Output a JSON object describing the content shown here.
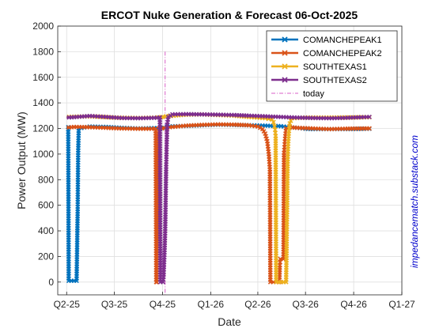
{
  "chart_data": {
    "type": "line",
    "title": "ERCOT Nuke Generation & Forecast 06-Oct-2025",
    "xlabel": "Date",
    "ylabel": "Power Output (MW)",
    "ylim": [
      -100,
      2000
    ],
    "yticks": [
      0,
      200,
      400,
      600,
      800,
      1000,
      1200,
      1400,
      1600,
      1800,
      2000
    ],
    "xlim": [
      "2025-03-15",
      "2027-01-01"
    ],
    "xticks": [
      {
        "label": "Q2-25",
        "date": "2025-04-01"
      },
      {
        "label": "Q3-25",
        "date": "2025-07-01"
      },
      {
        "label": "Q4-25",
        "date": "2025-10-01"
      },
      {
        "label": "Q1-26",
        "date": "2026-01-01"
      },
      {
        "label": "Q2-26",
        "date": "2026-04-01"
      },
      {
        "label": "Q3-26",
        "date": "2026-07-01"
      },
      {
        "label": "Q4-26",
        "date": "2026-10-01"
      },
      {
        "label": "Q1-27",
        "date": "2027-01-01"
      }
    ],
    "grid": true,
    "legend_position": "top-right",
    "today": {
      "name": "today",
      "date": "2025-10-06",
      "color": "#d95fc8"
    },
    "series": [
      {
        "name": "COMANCHEPEAK1",
        "color": "#0072bd",
        "points": [
          [
            "2025-04-01",
            1210
          ],
          [
            "2025-04-04",
            1210
          ],
          [
            "2025-04-05",
            10
          ],
          [
            "2025-04-20",
            10
          ],
          [
            "2025-04-22",
            550
          ],
          [
            "2025-04-23",
            1010
          ],
          [
            "2025-04-24",
            1200
          ],
          [
            "2025-05-15",
            1215
          ],
          [
            "2025-06-15",
            1212
          ],
          [
            "2025-07-15",
            1205
          ],
          [
            "2025-08-15",
            1200
          ],
          [
            "2025-09-15",
            1203
          ],
          [
            "2025-10-03",
            1205
          ],
          [
            "2025-10-05",
            1205
          ],
          [
            "2025-10-10",
            1215
          ],
          [
            "2025-11-15",
            1220
          ],
          [
            "2025-12-15",
            1225
          ],
          [
            "2026-01-15",
            1230
          ],
          [
            "2026-02-15",
            1228
          ],
          [
            "2026-03-15",
            1225
          ],
          [
            "2026-04-15",
            1222
          ],
          [
            "2026-05-15",
            1218
          ],
          [
            "2026-06-01",
            1210
          ],
          [
            "2026-06-15",
            1205
          ],
          [
            "2026-07-01",
            1198
          ],
          [
            "2026-07-15",
            1195
          ],
          [
            "2026-08-15",
            1195
          ],
          [
            "2026-09-15",
            1195
          ],
          [
            "2026-10-15",
            1197
          ],
          [
            "2026-10-31",
            1198
          ]
        ]
      },
      {
        "name": "COMANCHEPEAK2",
        "color": "#d95319",
        "points": [
          [
            "2025-04-01",
            1205
          ],
          [
            "2025-04-15",
            1212
          ],
          [
            "2025-05-15",
            1210
          ],
          [
            "2025-06-15",
            1205
          ],
          [
            "2025-07-15",
            1200
          ],
          [
            "2025-08-15",
            1198
          ],
          [
            "2025-09-10",
            1198
          ],
          [
            "2025-09-18",
            1198
          ],
          [
            "2025-09-19",
            0
          ],
          [
            "2025-09-20",
            0
          ],
          [
            "2025-09-21",
            640
          ],
          [
            "2025-09-22",
            890
          ],
          [
            "2025-09-23",
            1160
          ],
          [
            "2025-09-25",
            1198
          ],
          [
            "2025-10-15",
            1210
          ],
          [
            "2025-11-15",
            1222
          ],
          [
            "2025-12-15",
            1228
          ],
          [
            "2026-01-15",
            1232
          ],
          [
            "2026-02-15",
            1230
          ],
          [
            "2026-03-15",
            1225
          ],
          [
            "2026-04-01",
            1215
          ],
          [
            "2026-04-10",
            1195
          ],
          [
            "2026-04-15",
            1160
          ],
          [
            "2026-04-19",
            1100
          ],
          [
            "2026-04-22",
            1000
          ],
          [
            "2026-04-24",
            880
          ],
          [
            "2026-04-25",
            0
          ],
          [
            "2026-05-12",
            0
          ],
          [
            "2026-05-13",
            130
          ],
          [
            "2026-05-14",
            180
          ],
          [
            "2026-05-20",
            180
          ],
          [
            "2026-05-21",
            1010
          ],
          [
            "2026-05-23",
            1120
          ],
          [
            "2026-05-25",
            1200
          ],
          [
            "2026-06-01",
            1210
          ],
          [
            "2026-06-15",
            1205
          ],
          [
            "2026-07-15",
            1200
          ],
          [
            "2026-08-15",
            1195
          ],
          [
            "2026-09-15",
            1198
          ],
          [
            "2026-10-31",
            1200
          ]
        ]
      },
      {
        "name": "SOUTHTEXAS1",
        "color": "#edb120",
        "points": [
          [
            "2025-04-01",
            1290
          ],
          [
            "2025-05-15",
            1295
          ],
          [
            "2025-07-01",
            1285
          ],
          [
            "2025-08-15",
            1282
          ],
          [
            "2025-09-15",
            1285
          ],
          [
            "2025-09-28",
            1288
          ],
          [
            "2025-10-01",
            1290
          ],
          [
            "2025-10-08",
            1295
          ],
          [
            "2025-11-15",
            1308
          ],
          [
            "2025-12-15",
            1310
          ],
          [
            "2026-01-15",
            1305
          ],
          [
            "2026-02-15",
            1300
          ],
          [
            "2026-03-15",
            1290
          ],
          [
            "2026-04-15",
            1280
          ],
          [
            "2026-04-28",
            1270
          ],
          [
            "2026-05-01",
            1250
          ],
          [
            "2026-05-03",
            1215
          ],
          [
            "2026-05-04",
            1190
          ],
          [
            "2026-05-05",
            1140
          ],
          [
            "2026-05-06",
            0
          ],
          [
            "2026-05-25",
            0
          ],
          [
            "2026-05-26",
            280
          ],
          [
            "2026-05-27",
            620
          ],
          [
            "2026-05-28",
            960
          ],
          [
            "2026-05-29",
            1080
          ],
          [
            "2026-05-30",
            1160
          ],
          [
            "2026-06-01",
            1240
          ],
          [
            "2026-06-05",
            1280
          ],
          [
            "2026-07-01",
            1285
          ],
          [
            "2026-08-15",
            1285
          ],
          [
            "2026-10-31",
            1288
          ]
        ]
      },
      {
        "name": "SOUTHTEXAS2",
        "color": "#7e2f8e",
        "points": [
          [
            "2025-04-01",
            1285
          ],
          [
            "2025-04-20",
            1290
          ],
          [
            "2025-05-15",
            1298
          ],
          [
            "2025-06-15",
            1290
          ],
          [
            "2025-07-15",
            1282
          ],
          [
            "2025-08-15",
            1280
          ],
          [
            "2025-09-15",
            1283
          ],
          [
            "2025-09-25",
            1285
          ],
          [
            "2025-09-26",
            1285
          ],
          [
            "2025-09-27",
            0
          ],
          [
            "2025-10-02",
            0
          ],
          [
            "2025-10-03",
            40
          ],
          [
            "2025-10-05",
            250
          ],
          [
            "2025-10-06",
            380
          ],
          [
            "2025-10-08",
            900
          ],
          [
            "2025-10-10",
            1230
          ],
          [
            "2025-10-12",
            1290
          ],
          [
            "2025-10-20",
            1310
          ],
          [
            "2025-11-15",
            1312
          ],
          [
            "2025-12-15",
            1310
          ],
          [
            "2026-01-15",
            1308
          ],
          [
            "2026-02-15",
            1305
          ],
          [
            "2026-03-15",
            1300
          ],
          [
            "2026-04-15",
            1295
          ],
          [
            "2026-05-15",
            1290
          ],
          [
            "2026-06-15",
            1285
          ],
          [
            "2026-07-15",
            1282
          ],
          [
            "2026-08-15",
            1280
          ],
          [
            "2026-09-15",
            1283
          ],
          [
            "2026-10-15",
            1288
          ],
          [
            "2026-10-31",
            1290
          ]
        ]
      }
    ]
  },
  "watermark": {
    "text": "impedancematch.substack.com",
    "color": "#0000cc"
  }
}
